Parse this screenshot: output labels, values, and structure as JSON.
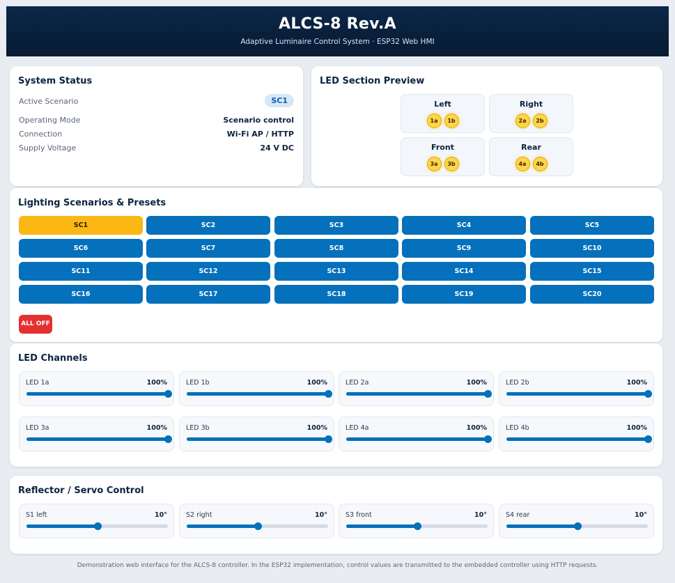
{
  "header": {
    "title": "ALCS-8 Rev.A",
    "subtitle": "Adaptive Luminaire Control System · ESP32 Web HMI"
  },
  "status": {
    "title": "System Status",
    "rows": [
      {
        "label": "Active Scenario",
        "value": "SC1"
      },
      {
        "label": "Operating Mode",
        "value": "Scenario control"
      },
      {
        "label": "Connection",
        "value": "Wi-Fi AP / HTTP"
      },
      {
        "label": "Supply Voltage",
        "value": "24 V DC"
      }
    ]
  },
  "preview": {
    "title": "LED Section Preview",
    "zones": [
      {
        "name": "Left",
        "leds": [
          "1a",
          "1b"
        ]
      },
      {
        "name": "Right",
        "leds": [
          "2a",
          "2b"
        ]
      },
      {
        "name": "Front",
        "leds": [
          "3a",
          "3b"
        ]
      },
      {
        "name": "Rear",
        "leds": [
          "4a",
          "4b"
        ]
      }
    ],
    "led_color": "#ffd54a"
  },
  "scenarios": {
    "title": "Lighting Scenarios & Presets",
    "buttons": [
      "SC1",
      "SC2",
      "SC3",
      "SC4",
      "SC5",
      "SC6",
      "SC7",
      "SC8",
      "SC9",
      "SC10",
      "SC11",
      "SC12",
      "SC13",
      "SC14",
      "SC15",
      "SC16",
      "SC17",
      "SC18",
      "SC19",
      "SC20"
    ],
    "active": "SC1",
    "all_off": "ALL OFF",
    "colors": {
      "default": "#0570bb",
      "active": "#fbb713",
      "off": "#e53030"
    }
  },
  "led_channels": {
    "title": "LED Channels",
    "channels": [
      {
        "label": "LED 1a",
        "value_text": "100%",
        "level": 1.0
      },
      {
        "label": "LED 1b",
        "value_text": "100%",
        "level": 1.0
      },
      {
        "label": "LED 2a",
        "value_text": "100%",
        "level": 1.0
      },
      {
        "label": "LED 2b",
        "value_text": "100%",
        "level": 1.0
      },
      {
        "label": "LED 3a",
        "value_text": "100%",
        "level": 1.0
      },
      {
        "label": "LED 3b",
        "value_text": "100%",
        "level": 1.0
      },
      {
        "label": "LED 4a",
        "value_text": "100%",
        "level": 1.0
      },
      {
        "label": "LED 4b",
        "value_text": "100%",
        "level": 1.0
      }
    ]
  },
  "servos": {
    "title": "Reflector / Servo Control",
    "channels": [
      {
        "label": "S1 left",
        "value_text": "10°",
        "level": 0.5
      },
      {
        "label": "S2 right",
        "value_text": "10°",
        "level": 0.5
      },
      {
        "label": "S3 front",
        "value_text": "10°",
        "level": 0.5
      },
      {
        "label": "S4 rear",
        "value_text": "10°",
        "level": 0.5
      }
    ]
  },
  "footer": "Demonstration web interface for the ALCS-8 controller. In the ESP32 implementation, control values are transmitted to the embedded controller using HTTP requests."
}
